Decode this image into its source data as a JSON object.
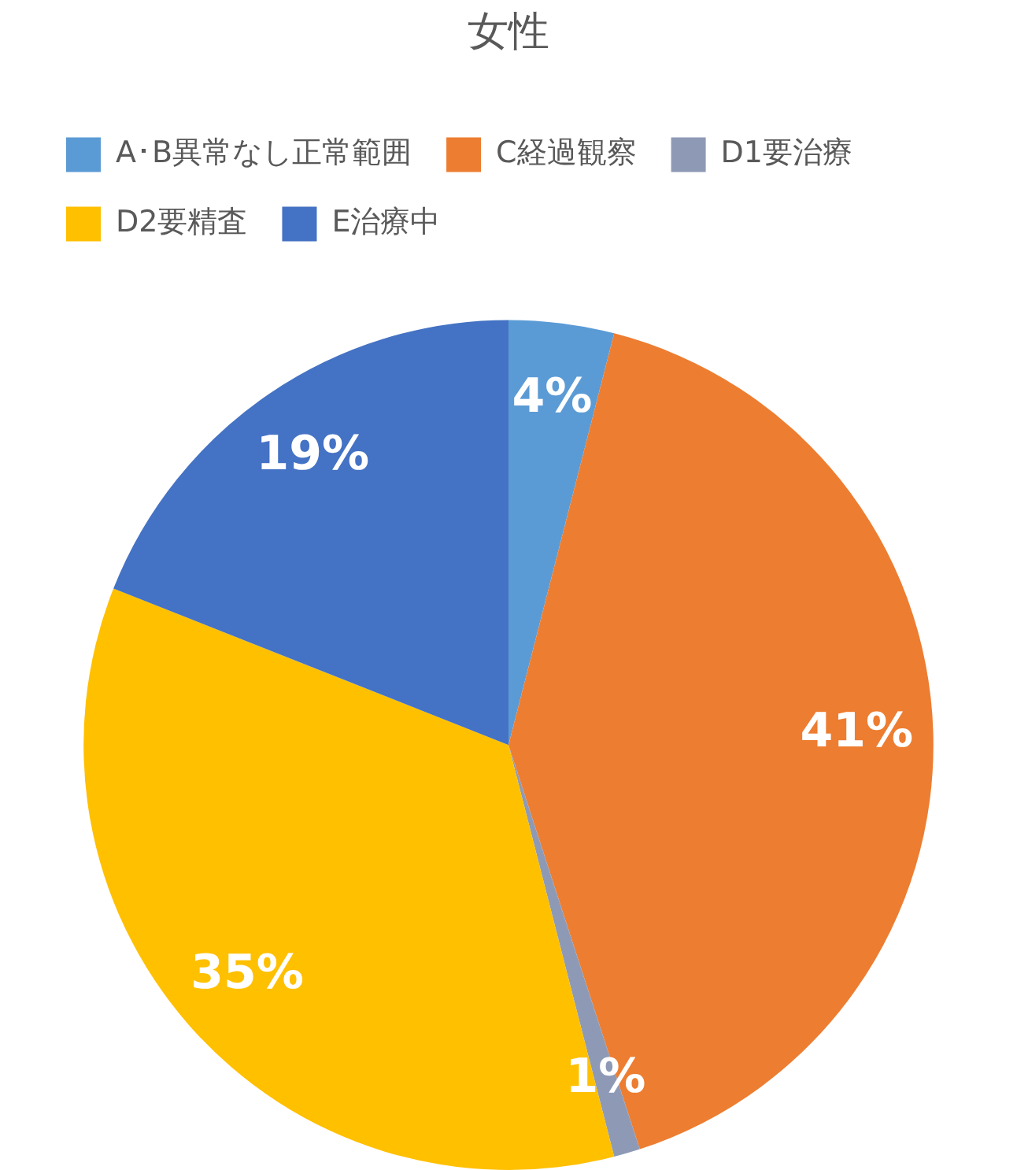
{
  "chart_data": {
    "type": "pie",
    "title": "女性",
    "categories": [
      "A･B異常なし正常範囲",
      "C経過観察",
      "D1要治療",
      "D2要精査",
      "E治療中"
    ],
    "values": [
      4,
      41,
      1,
      35,
      19
    ],
    "colors": [
      "#5b9bd5",
      "#ed7d31",
      "#8e9ab5",
      "#ffc000",
      "#4472c4"
    ],
    "value_labels": [
      "4%",
      "41%",
      "1%",
      "35%",
      "19%"
    ],
    "legend": "top"
  }
}
